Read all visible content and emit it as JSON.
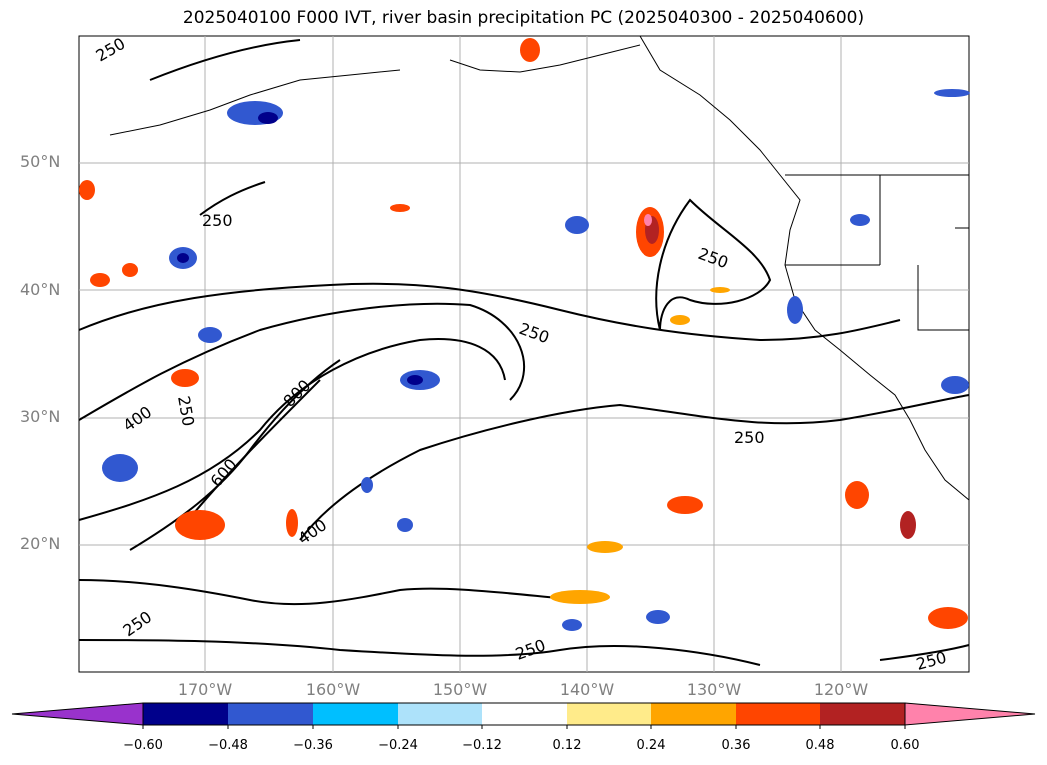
{
  "title": "2025040100 F000 IVT, river basin precipitation PC (2025040300 - 2025040600)",
  "map": {
    "lat_labels": [
      {
        "text": "50°N",
        "lat": 50
      },
      {
        "text": "40°N",
        "lat": 40
      },
      {
        "text": "30°N",
        "lat": 30
      },
      {
        "text": "20°N",
        "lat": 20
      }
    ],
    "lon_labels": [
      {
        "text": "170°W",
        "lon": -170
      },
      {
        "text": "160°W",
        "lon": -160
      },
      {
        "text": "150°W",
        "lon": -150
      },
      {
        "text": "140°W",
        "lon": -140
      },
      {
        "text": "130°W",
        "lon": -130
      },
      {
        "text": "120°W",
        "lon": -120
      }
    ],
    "contour_labels": [
      "250",
      "250",
      "250",
      "250",
      "250",
      "250",
      "250",
      "250",
      "400",
      "400",
      "600",
      "800",
      "250"
    ],
    "gridlines": true
  },
  "colorbar": {
    "colors": [
      "#9932CC",
      "#00008B",
      "#3158D0",
      "#00BFFF",
      "#ADE2FA",
      "#FFFFFF",
      "#FFEB8A",
      "#FFA500",
      "#FF4500",
      "#B22222",
      "#FF82AB"
    ],
    "ticks": [
      "−0.60",
      "−0.48",
      "−0.36",
      "−0.24",
      "−0.12",
      "0.12",
      "0.24",
      "0.36",
      "0.48",
      "0.60"
    ]
  }
}
